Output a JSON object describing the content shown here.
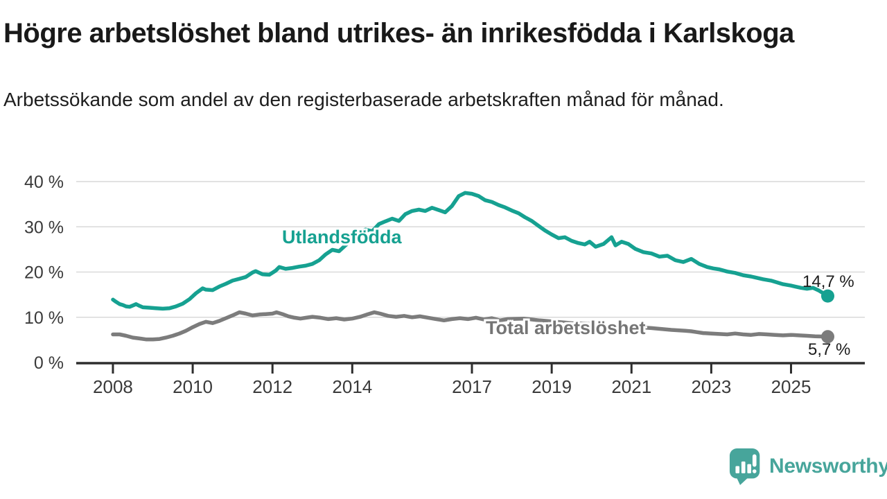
{
  "header": {
    "title": "Högre arbetslöshet bland utrikes- än inrikesfödda i Karlskoga",
    "subtitle": "Arbetssökande som andel av den registerbaserade arbetskraften månad för månad."
  },
  "colors": {
    "foreign_born": "#16a191",
    "total": "#7c7c7c",
    "axis": "#2e2e2e",
    "grid": "#d9d9d9",
    "tick_label": "#3a3a3a",
    "title_text": "#191919",
    "logo": "#47a59b"
  },
  "chart_data": {
    "type": "line",
    "title": "Högre arbetslöshet bland utrikes- än inrikesfödda i Karlskoga",
    "subtitle": "Arbetssökande som andel av den registerbaserade arbetskraften månad för månad.",
    "x_axis": {
      "ticks": [
        2008,
        2010,
        2012,
        2014,
        2017,
        2019,
        2021,
        2023,
        2025
      ],
      "range": [
        2007.08,
        2026.85
      ]
    },
    "y_axis": {
      "ticks": [
        0,
        10,
        20,
        30,
        40
      ],
      "tick_suffix": " %",
      "range": [
        0,
        40
      ],
      "grid": true
    },
    "legend_position": "inline-labels",
    "series": [
      {
        "id": "utlandsfodda",
        "name": "Utlandsfödda",
        "color": "#16a191",
        "end_label": "14,7 %",
        "end_value": 14.7,
        "points": [
          [
            2008.0,
            13.9
          ],
          [
            2008.08,
            13.4
          ],
          [
            2008.17,
            12.9
          ],
          [
            2008.25,
            12.7
          ],
          [
            2008.33,
            12.4
          ],
          [
            2008.42,
            12.3
          ],
          [
            2008.5,
            12.6
          ],
          [
            2008.58,
            12.9
          ],
          [
            2008.67,
            12.5
          ],
          [
            2008.75,
            12.2
          ],
          [
            2008.92,
            12.1
          ],
          [
            2009.08,
            12.0
          ],
          [
            2009.25,
            11.9
          ],
          [
            2009.42,
            12.0
          ],
          [
            2009.58,
            12.4
          ],
          [
            2009.75,
            13.0
          ],
          [
            2009.92,
            14.0
          ],
          [
            2010.08,
            15.3
          ],
          [
            2010.25,
            16.4
          ],
          [
            2010.33,
            16.1
          ],
          [
            2010.5,
            16.0
          ],
          [
            2010.67,
            16.8
          ],
          [
            2010.83,
            17.4
          ],
          [
            2011.0,
            18.1
          ],
          [
            2011.17,
            18.5
          ],
          [
            2011.33,
            18.9
          ],
          [
            2011.5,
            19.9
          ],
          [
            2011.58,
            20.2
          ],
          [
            2011.75,
            19.5
          ],
          [
            2011.92,
            19.4
          ],
          [
            2012.08,
            20.3
          ],
          [
            2012.17,
            21.1
          ],
          [
            2012.33,
            20.7
          ],
          [
            2012.5,
            20.9
          ],
          [
            2012.67,
            21.2
          ],
          [
            2012.83,
            21.4
          ],
          [
            2013.0,
            21.8
          ],
          [
            2013.17,
            22.6
          ],
          [
            2013.33,
            23.9
          ],
          [
            2013.5,
            24.9
          ],
          [
            2013.67,
            24.6
          ],
          [
            2013.83,
            25.9
          ],
          [
            2014.0,
            27.2
          ],
          [
            2014.17,
            28.7
          ],
          [
            2014.33,
            29.4
          ],
          [
            2014.5,
            29.0
          ],
          [
            2014.67,
            30.6
          ],
          [
            2014.83,
            31.2
          ],
          [
            2015.0,
            31.8
          ],
          [
            2015.17,
            31.3
          ],
          [
            2015.33,
            32.8
          ],
          [
            2015.5,
            33.5
          ],
          [
            2015.67,
            33.8
          ],
          [
            2015.83,
            33.5
          ],
          [
            2016.0,
            34.2
          ],
          [
            2016.17,
            33.7
          ],
          [
            2016.33,
            33.2
          ],
          [
            2016.5,
            34.6
          ],
          [
            2016.67,
            36.8
          ],
          [
            2016.83,
            37.5
          ],
          [
            2017.0,
            37.3
          ],
          [
            2017.17,
            36.8
          ],
          [
            2017.33,
            35.9
          ],
          [
            2017.5,
            35.5
          ],
          [
            2017.67,
            34.8
          ],
          [
            2017.83,
            34.3
          ],
          [
            2018.0,
            33.6
          ],
          [
            2018.17,
            33.0
          ],
          [
            2018.33,
            32.1
          ],
          [
            2018.5,
            31.3
          ],
          [
            2018.67,
            30.2
          ],
          [
            2018.83,
            29.2
          ],
          [
            2019.0,
            28.3
          ],
          [
            2019.17,
            27.5
          ],
          [
            2019.33,
            27.7
          ],
          [
            2019.5,
            26.9
          ],
          [
            2019.67,
            26.4
          ],
          [
            2019.83,
            26.1
          ],
          [
            2019.95,
            26.7
          ],
          [
            2020.1,
            25.6
          ],
          [
            2020.3,
            26.2
          ],
          [
            2020.5,
            27.7
          ],
          [
            2020.6,
            25.9
          ],
          [
            2020.75,
            26.7
          ],
          [
            2020.92,
            26.2
          ],
          [
            2021.1,
            25.1
          ],
          [
            2021.3,
            24.4
          ],
          [
            2021.5,
            24.1
          ],
          [
            2021.7,
            23.4
          ],
          [
            2021.9,
            23.6
          ],
          [
            2022.1,
            22.6
          ],
          [
            2022.3,
            22.2
          ],
          [
            2022.5,
            22.9
          ],
          [
            2022.7,
            21.8
          ],
          [
            2022.9,
            21.1
          ],
          [
            2023.05,
            20.8
          ],
          [
            2023.2,
            20.6
          ],
          [
            2023.4,
            20.1
          ],
          [
            2023.6,
            19.8
          ],
          [
            2023.8,
            19.3
          ],
          [
            2024.0,
            19.0
          ],
          [
            2024.1,
            18.8
          ],
          [
            2024.3,
            18.4
          ],
          [
            2024.5,
            18.1
          ],
          [
            2024.65,
            17.7
          ],
          [
            2024.8,
            17.3
          ],
          [
            2025.0,
            17.0
          ],
          [
            2025.1,
            16.8
          ],
          [
            2025.25,
            16.5
          ],
          [
            2025.4,
            16.3
          ],
          [
            2025.55,
            16.5
          ],
          [
            2025.7,
            15.9
          ],
          [
            2025.92,
            14.7
          ]
        ]
      },
      {
        "id": "total",
        "name": "Total arbetslöshet",
        "color": "#7c7c7c",
        "end_label": "5,7 %",
        "end_value": 5.7,
        "points": [
          [
            2008.0,
            6.2
          ],
          [
            2008.17,
            6.2
          ],
          [
            2008.33,
            5.9
          ],
          [
            2008.5,
            5.5
          ],
          [
            2008.67,
            5.3
          ],
          [
            2008.83,
            5.1
          ],
          [
            2009.0,
            5.1
          ],
          [
            2009.17,
            5.2
          ],
          [
            2009.33,
            5.5
          ],
          [
            2009.5,
            5.9
          ],
          [
            2009.67,
            6.4
          ],
          [
            2009.83,
            7.0
          ],
          [
            2010.0,
            7.8
          ],
          [
            2010.17,
            8.5
          ],
          [
            2010.33,
            9.0
          ],
          [
            2010.5,
            8.7
          ],
          [
            2010.67,
            9.2
          ],
          [
            2010.83,
            9.8
          ],
          [
            2011.0,
            10.4
          ],
          [
            2011.17,
            11.1
          ],
          [
            2011.33,
            10.8
          ],
          [
            2011.5,
            10.4
          ],
          [
            2011.67,
            10.6
          ],
          [
            2011.83,
            10.7
          ],
          [
            2012.0,
            10.8
          ],
          [
            2012.1,
            11.1
          ],
          [
            2012.25,
            10.7
          ],
          [
            2012.4,
            10.2
          ],
          [
            2012.55,
            9.9
          ],
          [
            2012.7,
            9.7
          ],
          [
            2012.85,
            9.9
          ],
          [
            2013.0,
            10.1
          ],
          [
            2013.2,
            9.9
          ],
          [
            2013.4,
            9.6
          ],
          [
            2013.6,
            9.8
          ],
          [
            2013.8,
            9.5
          ],
          [
            2014.0,
            9.7
          ],
          [
            2014.2,
            10.1
          ],
          [
            2014.4,
            10.7
          ],
          [
            2014.55,
            11.1
          ],
          [
            2014.7,
            10.8
          ],
          [
            2014.9,
            10.3
          ],
          [
            2015.1,
            10.1
          ],
          [
            2015.3,
            10.3
          ],
          [
            2015.5,
            10.0
          ],
          [
            2015.7,
            10.2
          ],
          [
            2015.9,
            9.9
          ],
          [
            2016.1,
            9.6
          ],
          [
            2016.3,
            9.3
          ],
          [
            2016.5,
            9.6
          ],
          [
            2016.7,
            9.8
          ],
          [
            2016.9,
            9.6
          ],
          [
            2017.1,
            9.9
          ],
          [
            2017.3,
            9.5
          ],
          [
            2017.5,
            9.8
          ],
          [
            2017.7,
            9.3
          ],
          [
            2017.9,
            9.6
          ],
          [
            2018.3,
            9.7
          ],
          [
            2018.7,
            9.3
          ],
          [
            2019.1,
            9.0
          ],
          [
            2019.5,
            8.7
          ],
          [
            2020.0,
            8.5
          ],
          [
            2020.5,
            8.2
          ],
          [
            2021.0,
            7.9
          ],
          [
            2021.5,
            7.6
          ],
          [
            2022.0,
            7.2
          ],
          [
            2022.35,
            7.0
          ],
          [
            2022.5,
            6.9
          ],
          [
            2022.65,
            6.7
          ],
          [
            2022.8,
            6.5
          ],
          [
            2023.0,
            6.4
          ],
          [
            2023.2,
            6.3
          ],
          [
            2023.4,
            6.2
          ],
          [
            2023.6,
            6.4
          ],
          [
            2023.8,
            6.2
          ],
          [
            2024.0,
            6.1
          ],
          [
            2024.2,
            6.3
          ],
          [
            2024.4,
            6.2
          ],
          [
            2024.6,
            6.1
          ],
          [
            2024.8,
            6.0
          ],
          [
            2025.0,
            6.1
          ],
          [
            2025.2,
            6.0
          ],
          [
            2025.4,
            5.9
          ],
          [
            2025.6,
            5.8
          ],
          [
            2025.92,
            5.7
          ]
        ]
      }
    ]
  },
  "footer": {
    "brand": "Newsworthy"
  }
}
